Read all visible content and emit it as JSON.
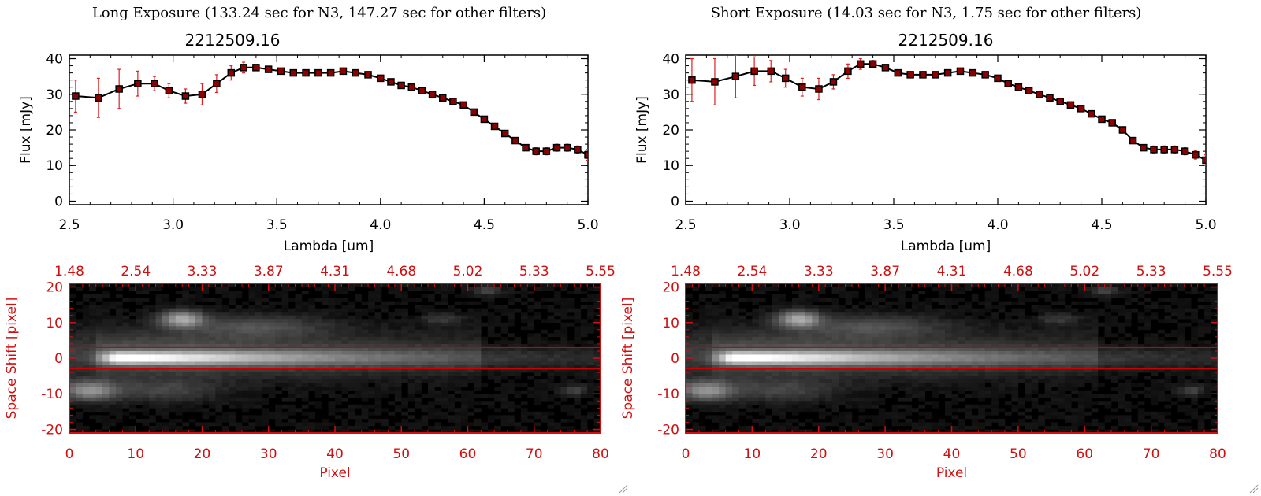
{
  "panels": [
    {
      "header": "Long Exposure (133.24 sec for N3, 147.27 sec for other filters)",
      "title": "2212509.16",
      "chart_data": {
        "type": "line",
        "title": "2212509.16",
        "xlabel": "Lambda [um]",
        "ylabel": "Flux [mJy]",
        "xlim": [
          2.5,
          5.0
        ],
        "ylim": [
          -1,
          41
        ],
        "xticks": [
          "2.5",
          "3.0",
          "3.5",
          "4.0",
          "4.5",
          "5.0"
        ],
        "yticks": [
          "0",
          "10",
          "20",
          "30",
          "40"
        ],
        "series": [
          {
            "x": [
              2.53,
              2.64,
              2.74,
              2.83,
              2.91,
              2.98,
              3.06,
              3.14,
              3.21,
              3.28,
              3.34,
              3.4,
              3.46,
              3.52,
              3.58,
              3.64,
              3.7,
              3.76,
              3.82,
              3.88,
              3.94,
              4.0,
              4.05,
              4.1,
              4.15,
              4.2,
              4.25,
              4.3,
              4.35,
              4.4,
              4.45,
              4.5,
              4.55,
              4.6,
              4.65,
              4.7,
              4.75,
              4.8,
              4.85,
              4.9,
              4.95,
              5.0
            ],
            "y": [
              29.5,
              29.0,
              31.5,
              33.0,
              33.0,
              31.0,
              29.5,
              30.0,
              33.0,
              36.0,
              37.5,
              37.5,
              37.0,
              36.5,
              36.0,
              36.0,
              36.0,
              36.0,
              36.5,
              36.0,
              35.5,
              34.5,
              33.5,
              32.5,
              32.0,
              31.0,
              30.0,
              29.0,
              28.0,
              27.0,
              25.0,
              23.0,
              21.0,
              19.0,
              17.0,
              15.0,
              14.0,
              14.0,
              15.0,
              15.0,
              14.5,
              13.0
            ],
            "err": [
              4.5,
              5.5,
              5.5,
              3.5,
              2.0,
              2.0,
              2.0,
              3.0,
              2.5,
              2.0,
              1.5,
              0.8,
              0.6,
              0.6,
              0.6,
              0.6,
              0.6,
              0.6,
              0.6,
              0.6,
              0.6,
              0.6,
              0.6,
              0.6,
              0.6,
              0.6,
              0.6,
              0.6,
              0.6,
              0.6,
              0.6,
              0.6,
              0.6,
              0.6,
              0.8,
              0.8,
              1.0,
              1.0,
              1.0,
              1.0,
              1.0,
              1.5
            ]
          }
        ]
      },
      "image": {
        "xlabel": "Pixel",
        "ylabel": "Space Shift [pixel]",
        "xlim": [
          0,
          80
        ],
        "ylim": [
          -21,
          21
        ],
        "xticks": [
          "0",
          "10",
          "20",
          "30",
          "40",
          "50",
          "60",
          "70",
          "80"
        ],
        "yticks": [
          "-20",
          "-10",
          "0",
          "10",
          "20"
        ],
        "top_ticks": [
          "1.48",
          "2.54",
          "3.33",
          "3.87",
          "4.31",
          "4.68",
          "5.02",
          "5.33",
          "5.55"
        ],
        "extraction_lines": [
          3,
          -3
        ],
        "sources": [
          {
            "x": 8,
            "y": 0,
            "peak": 1.0
          },
          {
            "x": 17,
            "y": 11,
            "peak": 0.55
          },
          {
            "x": 3,
            "y": -9,
            "peak": 0.45
          }
        ]
      }
    },
    {
      "header": "Short Exposure (14.03 sec for N3, 1.75 sec for other filters)",
      "title": "2212509.16",
      "chart_data": {
        "type": "line",
        "title": "2212509.16",
        "xlabel": "Lambda [um]",
        "ylabel": "Flux [mJy]",
        "xlim": [
          2.5,
          5.0
        ],
        "ylim": [
          -1,
          41
        ],
        "xticks": [
          "2.5",
          "3.0",
          "3.5",
          "4.0",
          "4.5",
          "5.0"
        ],
        "yticks": [
          "0",
          "10",
          "20",
          "30",
          "40"
        ],
        "series": [
          {
            "x": [
              2.53,
              2.64,
              2.74,
              2.83,
              2.91,
              2.98,
              3.06,
              3.14,
              3.21,
              3.28,
              3.34,
              3.4,
              3.46,
              3.52,
              3.58,
              3.64,
              3.7,
              3.76,
              3.82,
              3.88,
              3.94,
              4.0,
              4.05,
              4.1,
              4.15,
              4.2,
              4.25,
              4.3,
              4.35,
              4.4,
              4.45,
              4.5,
              4.55,
              4.6,
              4.65,
              4.7,
              4.75,
              4.8,
              4.85,
              4.9,
              4.95,
              5.0
            ],
            "y": [
              34.0,
              33.5,
              35.0,
              36.5,
              36.5,
              34.5,
              32.0,
              31.5,
              33.5,
              36.5,
              38.5,
              38.5,
              37.5,
              36.0,
              35.5,
              35.5,
              35.5,
              36.0,
              36.5,
              36.0,
              35.5,
              34.5,
              33.0,
              32.0,
              31.0,
              30.0,
              29.0,
              28.0,
              27.0,
              26.0,
              24.5,
              23.0,
              22.0,
              20.0,
              17.0,
              15.0,
              14.5,
              14.5,
              14.5,
              14.0,
              13.0,
              11.5
            ],
            "err": [
              6.0,
              6.5,
              6.0,
              4.0,
              3.0,
              2.5,
              2.5,
              3.0,
              2.0,
              2.0,
              1.5,
              1.0,
              0.6,
              0.6,
              0.6,
              0.6,
              0.6,
              0.6,
              0.6,
              0.6,
              0.6,
              0.6,
              0.6,
              0.6,
              0.6,
              0.6,
              0.6,
              0.6,
              0.6,
              0.6,
              0.6,
              0.6,
              0.6,
              0.6,
              0.8,
              0.8,
              1.0,
              1.0,
              1.0,
              1.0,
              1.2,
              1.5
            ]
          }
        ]
      },
      "image": {
        "xlabel": "Pixel",
        "ylabel": "Space Shift [pixel]",
        "xlim": [
          0,
          80
        ],
        "ylim": [
          -21,
          21
        ],
        "xticks": [
          "0",
          "10",
          "20",
          "30",
          "40",
          "50",
          "60",
          "70",
          "80"
        ],
        "yticks": [
          "-20",
          "-10",
          "0",
          "10",
          "20"
        ],
        "top_ticks": [
          "1.48",
          "2.54",
          "3.33",
          "3.87",
          "4.31",
          "4.68",
          "5.02",
          "5.33",
          "5.55"
        ],
        "extraction_lines": [
          3,
          -3
        ],
        "sources": [
          {
            "x": 8,
            "y": 0,
            "peak": 1.0
          },
          {
            "x": 17,
            "y": 11,
            "peak": 0.55
          },
          {
            "x": 3,
            "y": -9,
            "peak": 0.45
          }
        ]
      }
    }
  ],
  "colors": {
    "axis_top": "#000000",
    "marker": "#8b0000",
    "errorbar": "#e02020",
    "axis_bottom": "#d01010",
    "extraction_line": "#cc0000"
  }
}
